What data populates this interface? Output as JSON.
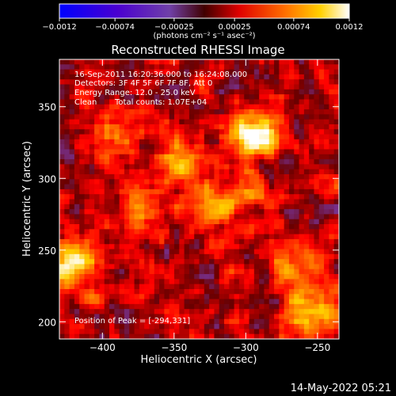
{
  "chart_data": {
    "type": "heatmap",
    "title": "Reconstructed RHESSI Image",
    "xlabel": "Heliocentric X (arcsec)",
    "ylabel": "Heliocentric Y (arcsec)",
    "xlim": [
      -430,
      -235
    ],
    "ylim": [
      188,
      383
    ],
    "x_ticks": [
      -400,
      -350,
      -300,
      -250
    ],
    "x_tick_labels": [
      "−400",
      "−350",
      "−300",
      "−250"
    ],
    "y_ticks": [
      200,
      250,
      300,
      350
    ],
    "y_tick_labels": [
      "200",
      "250",
      "300",
      "350"
    ],
    "colorbar": {
      "range": [
        -0.0012,
        0.0012
      ],
      "ticks": [
        -0.0012,
        -0.00074,
        -0.00025,
        0.00025,
        0.00074,
        0.0012
      ],
      "tick_labels": [
        "−0.0012",
        "−0.00074",
        "−0.00025",
        "0.00025",
        "0.00074",
        "0.0012"
      ],
      "units": "(photons cm⁻² s⁻¹ asec⁻²)",
      "colormap": [
        "#0000ff",
        "#5a00c8",
        "#7a3aa8",
        "#6a0000",
        "#ff0000",
        "#ff6a00",
        "#ffd000",
        "#ffffff"
      ]
    },
    "sources": [
      {
        "x": -294,
        "y": 331,
        "peak": 0.0012
      },
      {
        "x": -420,
        "y": 238,
        "peak": 0.0011
      },
      {
        "x": -255,
        "y": 205,
        "peak": 0.0009
      },
      {
        "x": -345,
        "y": 310,
        "peak": 0.0008
      },
      {
        "x": -325,
        "y": 280,
        "peak": 0.0007
      },
      {
        "x": -395,
        "y": 330,
        "peak": 0.0006
      },
      {
        "x": -265,
        "y": 240,
        "peak": 0.0006
      },
      {
        "x": -375,
        "y": 280,
        "peak": 0.0005
      },
      {
        "x": -300,
        "y": 290,
        "peak": 0.0005
      }
    ]
  },
  "annotations": {
    "time_range": "16-Sep-2011 16:20:36.000 to 16:24:08.000",
    "detectors": "Detectors: 3F 4F 5F 6F 7F 8F, Att 0",
    "energy": "Energy Range: 12.0 - 25.0 keV",
    "method": "Clean",
    "counts": "Total counts: 1.07E+04",
    "peak": "Position of Peak = [-294,331]"
  },
  "footer": {
    "date": "14-May-2022 05:21"
  }
}
